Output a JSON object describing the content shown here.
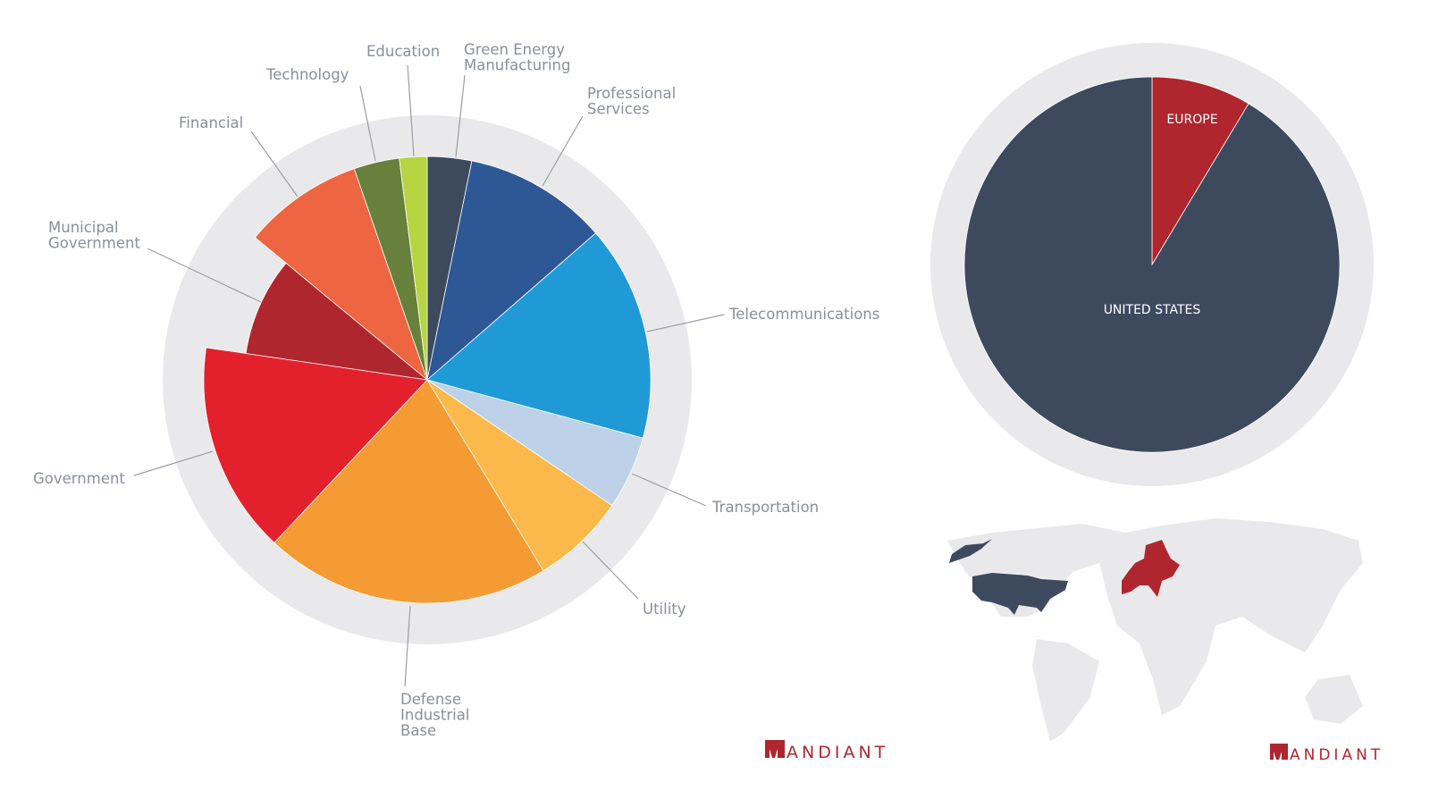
{
  "chart_data": [
    {
      "type": "pie",
      "start": "12 o'clock, clockwise",
      "categories": [
        "Green Energy Manufacturing",
        "Professional Services",
        "Telecommunications",
        "Transportation",
        "Utility",
        "Defense Industrial Base",
        "Government",
        "Municipal Government",
        "Financial",
        "Technology",
        "Education"
      ],
      "values": [
        3.2,
        10.4,
        15.6,
        5.3,
        6.8,
        20.7,
        15.3,
        8.7,
        8.7,
        3.3,
        2.0
      ],
      "labels": [
        [
          "Green Energy",
          "Manufacturing"
        ],
        [
          "Professional",
          "Services"
        ],
        [
          "Telecommunications"
        ],
        [
          "Transportation"
        ],
        [
          "Utility"
        ],
        [
          "Defense",
          "Industrial",
          "Base"
        ],
        [
          "Government"
        ],
        [
          "Municipal",
          "Government"
        ],
        [
          "Financial"
        ],
        [
          "Technology"
        ],
        [
          "Education"
        ]
      ],
      "colors": [
        "#3d4a5e",
        "#2e5795",
        "#1f9ad6",
        "#bdd2e8",
        "#fbb94b",
        "#f59b33",
        "#e3212d",
        "#b0262e",
        "#ee6541",
        "#67803b",
        "#b7d443"
      ],
      "ring_color": "#e9e9eb"
    },
    {
      "type": "pie",
      "start": "12 o'clock, clockwise",
      "categories": [
        "EUROPE",
        "UNITED STATES"
      ],
      "values": [
        8.6,
        91.4
      ],
      "colors": [
        "#b0262e",
        "#3d4a5e"
      ],
      "ring_color": "#e9e9eb"
    }
  ],
  "map": {
    "highlighted": [
      "United States",
      "Europe"
    ],
    "colors": {
      "base": "#e9e9eb",
      "us": "#3d4a5e",
      "europe": "#b0262e"
    }
  },
  "logos": {
    "left": "MANDIANT",
    "right": "MANDIANT"
  }
}
